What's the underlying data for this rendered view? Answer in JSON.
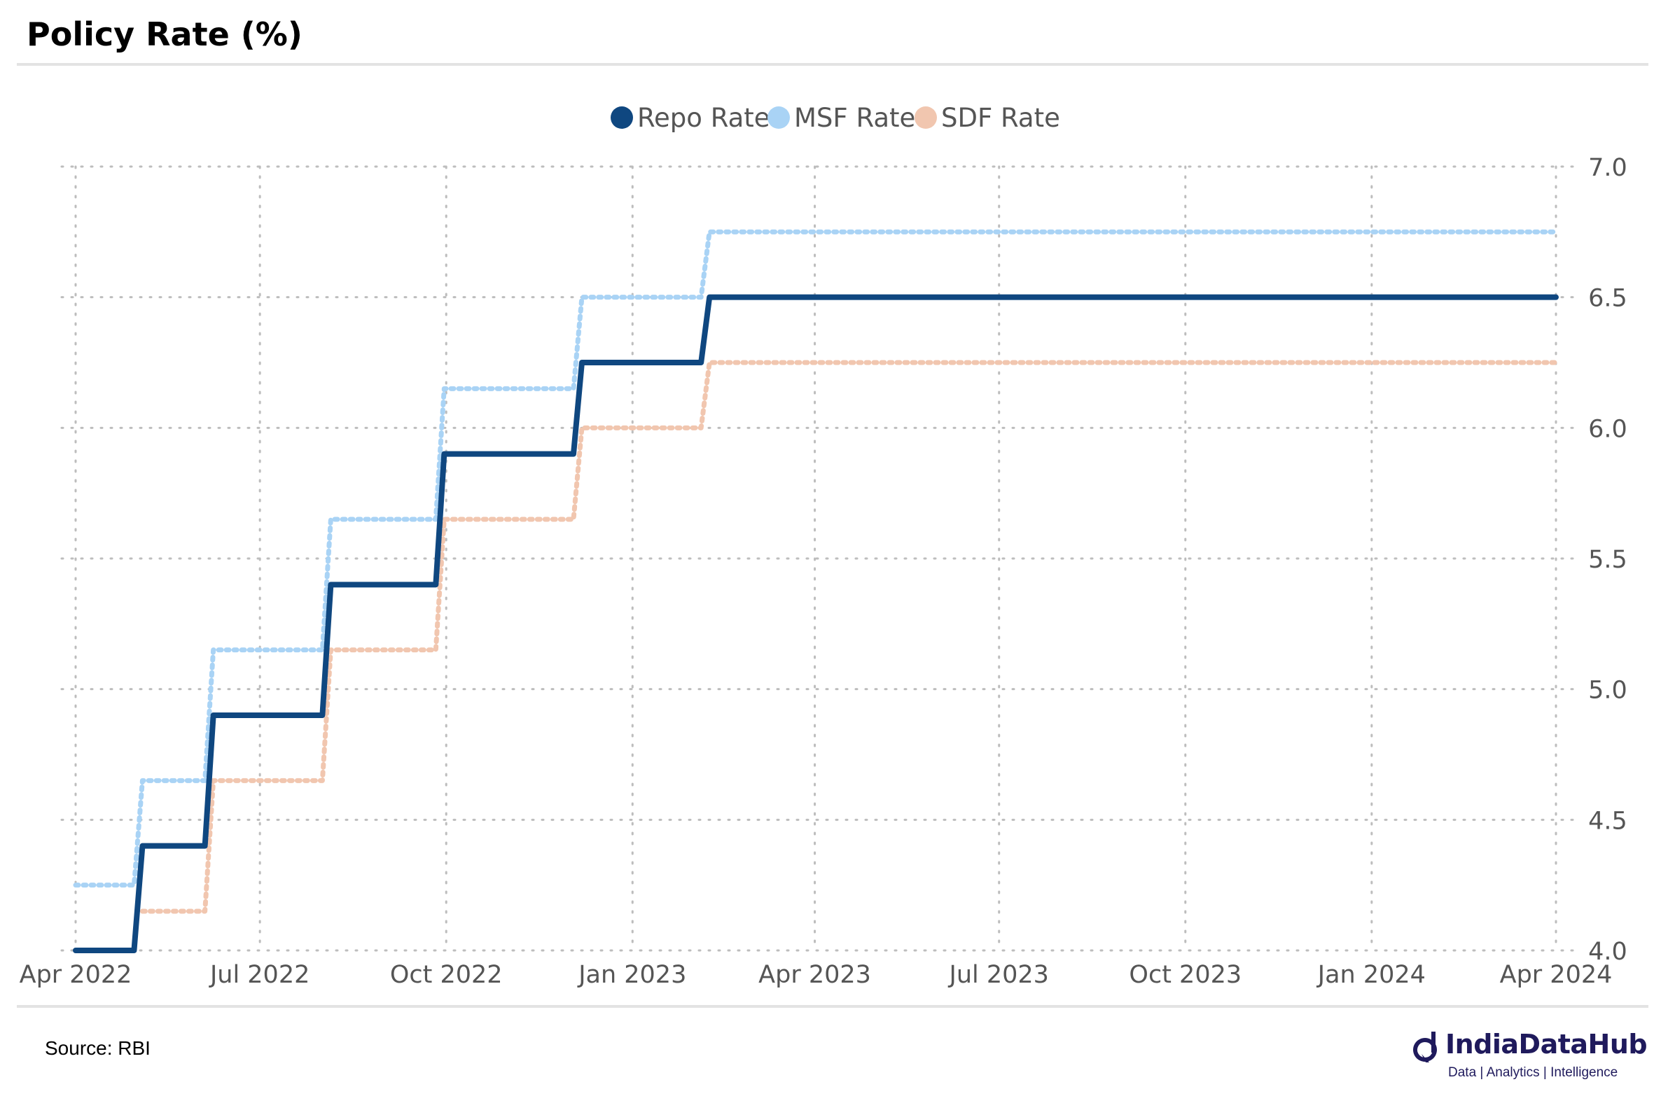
{
  "header": {
    "title": "Policy Rate (%)"
  },
  "footer": {
    "source": "Source: RBI",
    "brand_name": "IndiaDataHub",
    "brand_tagline": "Data | Analytics | Intelligence"
  },
  "chart_data": {
    "type": "line",
    "title": "",
    "xlabel": "",
    "ylabel": "",
    "ylim": [
      4.0,
      7.0
    ],
    "yticks": [
      4.0,
      4.5,
      5.0,
      5.5,
      6.0,
      6.5,
      7.0
    ],
    "ytick_labels": [
      "4.0",
      "4.5",
      "5.0",
      "5.5",
      "6.0",
      "6.5",
      "7.0"
    ],
    "xlim": [
      "2022-04-01",
      "2024-04-01"
    ],
    "xticks": [
      "2022-04-01",
      "2022-07-01",
      "2022-10-01",
      "2023-01-01",
      "2023-04-01",
      "2023-07-01",
      "2023-10-01",
      "2024-01-01",
      "2024-04-01"
    ],
    "xtick_labels": [
      "Apr 2022",
      "Jul 2022",
      "Oct 2022",
      "Jan 2023",
      "Apr 2023",
      "Jul 2023",
      "Oct 2023",
      "Jan 2024",
      "Apr 2024"
    ],
    "grid": true,
    "y_axis_side": "right",
    "legend_position": "top-center",
    "series": [
      {
        "name": "Repo Rate",
        "color": "#0f4780",
        "style": "solid",
        "step": "post",
        "points": [
          [
            "2022-04-01",
            4.0
          ],
          [
            "2022-05-04",
            4.4
          ],
          [
            "2022-06-08",
            4.9
          ],
          [
            "2022-08-05",
            5.4
          ],
          [
            "2022-09-30",
            5.9
          ],
          [
            "2022-12-07",
            6.25
          ],
          [
            "2023-02-08",
            6.5
          ],
          [
            "2024-04-01",
            6.5
          ]
        ]
      },
      {
        "name": "MSF Rate",
        "color": "#a9d3f5",
        "style": "dotted",
        "step": "post",
        "points": [
          [
            "2022-04-01",
            4.25
          ],
          [
            "2022-05-04",
            4.65
          ],
          [
            "2022-06-08",
            5.15
          ],
          [
            "2022-08-05",
            5.65
          ],
          [
            "2022-09-30",
            6.15
          ],
          [
            "2022-12-07",
            6.5
          ],
          [
            "2023-02-08",
            6.75
          ],
          [
            "2024-04-01",
            6.75
          ]
        ]
      },
      {
        "name": "SDF Rate",
        "color": "#f1c6af",
        "style": "dotted",
        "step": "post",
        "points": [
          [
            "2022-05-04",
            4.15
          ],
          [
            "2022-06-08",
            4.65
          ],
          [
            "2022-08-05",
            5.15
          ],
          [
            "2022-09-30",
            5.65
          ],
          [
            "2022-12-07",
            6.0
          ],
          [
            "2023-02-08",
            6.25
          ],
          [
            "2024-04-01",
            6.25
          ]
        ]
      }
    ]
  }
}
